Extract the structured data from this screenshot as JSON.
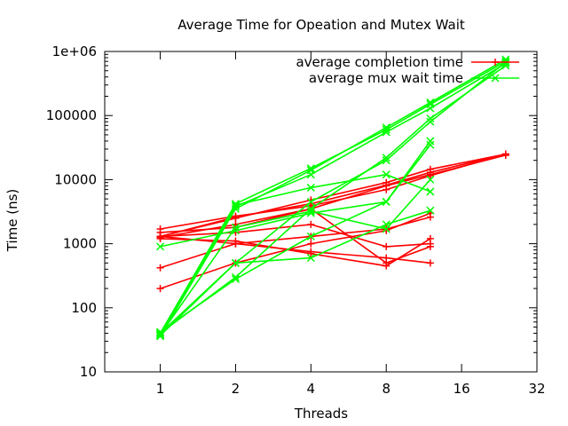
{
  "chart_data": {
    "type": "line",
    "title": "Average Time for Opeation and Mutex Wait",
    "xlabel": "Threads",
    "ylabel": "Time (ns)",
    "x_scale": "log2",
    "y_scale": "log10",
    "xlim": [
      0.6,
      32
    ],
    "ylim": [
      10,
      1000000
    ],
    "x_ticks": [
      {
        "v": 1,
        "label": "1"
      },
      {
        "v": 2,
        "label": "2"
      },
      {
        "v": 4,
        "label": "4"
      },
      {
        "v": 8,
        "label": "8"
      },
      {
        "v": 16,
        "label": "16"
      },
      {
        "v": 32,
        "label": "32"
      }
    ],
    "y_ticks": [
      {
        "v": 10,
        "label": "10"
      },
      {
        "v": 100,
        "label": "100"
      },
      {
        "v": 1000,
        "label": "1000"
      },
      {
        "v": 10000,
        "label": "10000"
      },
      {
        "v": 100000,
        "label": "100000"
      },
      {
        "v": 1000000,
        "label": "1e+06"
      }
    ],
    "grid": false,
    "legend_position": "top-right",
    "series": [
      {
        "name": "average completion time",
        "color": "#ff0000",
        "marker": "plus",
        "runs": [
          {
            "x": [
              1,
              2,
              4,
              8,
              12,
              24
            ],
            "y": [
              1300,
              2600,
              4200,
              8200,
              13000,
              25000
            ]
          },
          {
            "x": [
              1,
              2,
              4,
              8,
              12,
              24
            ],
            "y": [
              1300,
              2500,
              4800,
              9000,
              14500,
              25000
            ]
          },
          {
            "x": [
              1,
              2,
              4,
              8,
              12,
              24
            ],
            "y": [
              1250,
              2000,
              3500,
              8000,
              12000,
              24000
            ]
          },
          {
            "x": [
              1,
              2,
              4,
              8,
              12,
              24
            ],
            "y": [
              1700,
              2700,
              3900,
              7000,
              11500,
              25000
            ]
          },
          {
            "x": [
              1,
              2,
              4,
              8,
              12
            ],
            "y": [
              1300,
              1000,
              750,
              600,
              500
            ]
          },
          {
            "x": [
              1,
              2,
              4,
              8,
              12
            ],
            "y": [
              420,
              1000,
              1300,
              1700,
              2600
            ]
          },
          {
            "x": [
              1,
              2,
              4,
              8,
              12
            ],
            "y": [
              200,
              500,
              1000,
              1600,
              3000
            ]
          },
          {
            "x": [
              1,
              2,
              4,
              8,
              12
            ],
            "y": [
              1300,
              1500,
              2000,
              900,
              1000
            ]
          },
          {
            "x": [
              1,
              2,
              4,
              8,
              12
            ],
            "y": [
              1500,
              1800,
              3500,
              500,
              900
            ]
          },
          {
            "x": [
              1,
              2,
              4,
              8,
              12
            ],
            "y": [
              1200,
              1100,
              700,
              450,
              1200
            ]
          }
        ]
      },
      {
        "name": "average mux wait time",
        "color": "#00ff00",
        "marker": "x",
        "runs": [
          {
            "x": [
              1,
              2,
              4,
              8,
              12,
              24
            ],
            "y": [
              40,
              4200,
              15000,
              60000,
              150000,
              700000
            ]
          },
          {
            "x": [
              1,
              2,
              4,
              8,
              12,
              24
            ],
            "y": [
              38,
              3800,
              12000,
              55000,
              130000,
              650000
            ]
          },
          {
            "x": [
              1,
              2,
              4,
              8,
              12,
              24
            ],
            "y": [
              36,
              3500,
              14000,
              65000,
              160000,
              750000
            ]
          },
          {
            "x": [
              1,
              2,
              4,
              8,
              12,
              24
            ],
            "y": [
              40,
              300,
              3500,
              22000,
              90000,
              600000
            ]
          },
          {
            "x": [
              1,
              2,
              4,
              8,
              12,
              24
            ],
            "y": [
              37,
              500,
              4500,
              20000,
              80000,
              680000
            ]
          },
          {
            "x": [
              1,
              2,
              4,
              8,
              12
            ],
            "y": [
              900,
              1600,
              3000,
              4500,
              35000
            ]
          },
          {
            "x": [
              1,
              2,
              4,
              8,
              12
            ],
            "y": [
              42,
              280,
              1300,
              4500,
              40000
            ]
          },
          {
            "x": [
              1,
              2,
              4,
              8,
              12
            ],
            "y": [
              40,
              500,
              600,
              2000,
              3300
            ]
          },
          {
            "x": [
              1,
              2,
              4,
              8,
              12
            ],
            "y": [
              38,
              1800,
              3200,
              1700,
              10000
            ]
          },
          {
            "x": [
              1,
              2,
              4,
              8,
              12
            ],
            "y": [
              40,
              4000,
              7500,
              12000,
              6500
            ]
          }
        ]
      }
    ]
  }
}
